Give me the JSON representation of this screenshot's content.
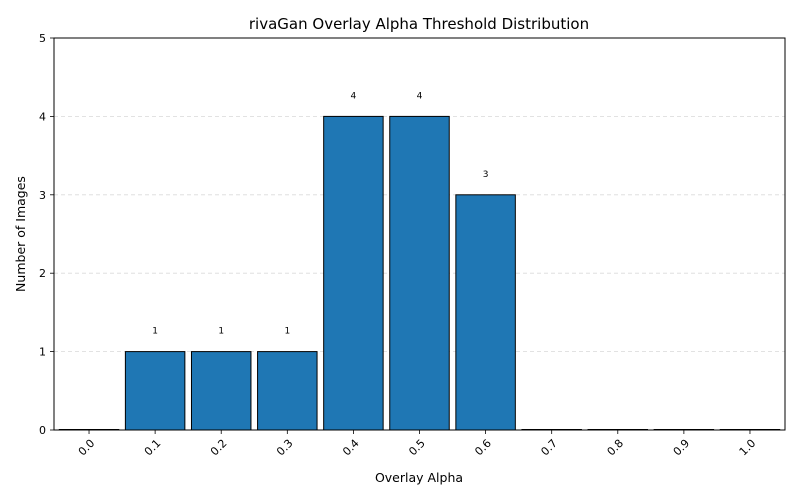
{
  "chart_data": {
    "type": "bar",
    "title": "rivaGan Overlay Alpha Threshold Distribution",
    "xlabel": "Overlay Alpha",
    "ylabel": "Number of Images",
    "categories": [
      "0.0",
      "0.1",
      "0.2",
      "0.3",
      "0.4",
      "0.5",
      "0.6",
      "0.7",
      "0.8",
      "0.9",
      "1.0"
    ],
    "values": [
      0,
      1,
      1,
      1,
      4,
      4,
      3,
      0,
      0,
      0,
      0
    ],
    "data_labels": [
      "",
      "1",
      "1",
      "1",
      "4",
      "4",
      "3",
      "",
      "",
      "",
      ""
    ],
    "ylim": [
      0,
      5
    ],
    "yticks": [
      "0",
      "1",
      "2",
      "3",
      "4",
      "5"
    ],
    "grid": "y-dashed",
    "colors": {
      "bar": "#1f77b4",
      "edge": "#000000",
      "grid": "#d9d9d9"
    }
  }
}
